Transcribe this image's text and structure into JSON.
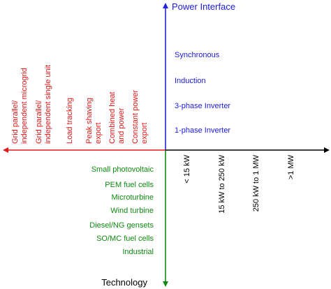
{
  "axes": {
    "top_label": "Power Interface",
    "bottom_label": "Technology",
    "colors": {
      "top": "#2323d8",
      "bottom": "#108a10",
      "left": "#e01818",
      "right": "#000000"
    }
  },
  "power_interface": [
    "Synchronous",
    "Induction",
    "3-phase Inverter",
    "1-phase Inverter"
  ],
  "applications": [
    {
      "lines": [
        "Grid parallel/",
        "independent microgrid"
      ]
    },
    {
      "lines": [
        "Grid parallel/",
        "independent single unit"
      ]
    },
    {
      "lines": [
        "Load tracking"
      ]
    },
    {
      "lines": [
        "Peak shaving",
        "export"
      ]
    },
    {
      "lines": [
        "Combined heat",
        "and power"
      ]
    },
    {
      "lines": [
        "Constant power",
        "export"
      ]
    }
  ],
  "technologies": [
    "Small photovoltaic",
    "PEM fuel cells",
    "Microturbine",
    "Wind turbine",
    "Diesel/NG gensets",
    "SO/MC fuel cells",
    "Industrial"
  ],
  "power_ranges": [
    "< 15 kW",
    "15 kW to 250 kW",
    "250 kW to 1 MW",
    ">1 MW"
  ]
}
